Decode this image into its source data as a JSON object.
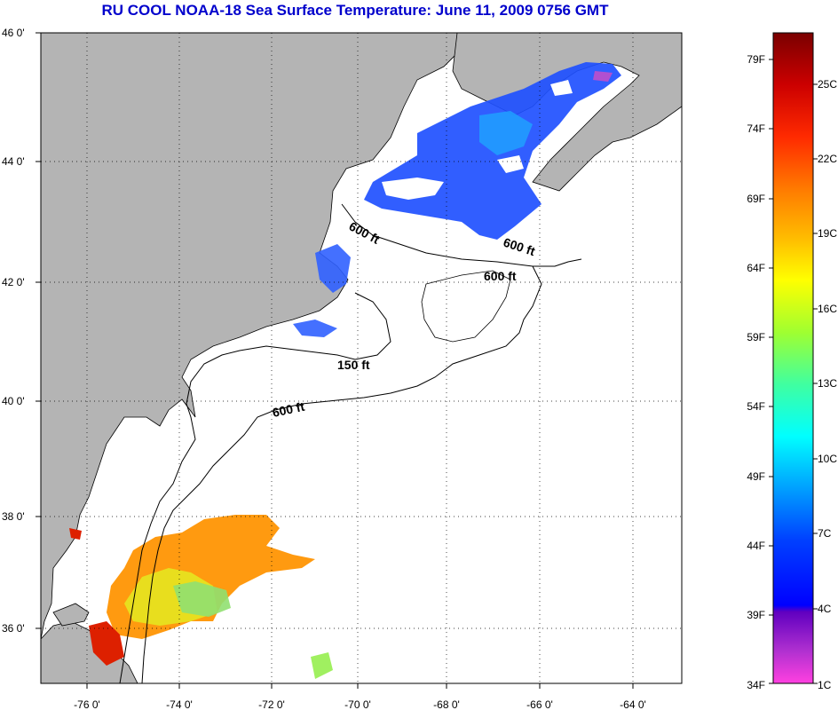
{
  "title": "RU COOL  NOAA-18  Sea Surface Temperature:  June 11, 2009 0756 GMT",
  "map": {
    "lon_labels": [
      "-76 0'",
      "-74 0'",
      "-72 0'",
      "-70 0'",
      "-68 0'",
      "-66 0'",
      "-64 0'"
    ],
    "lat_labels": [
      "46 0'",
      "44 0'",
      "42 0'",
      "40 0'",
      "38 0'",
      "36 0'"
    ],
    "contour_labels": [
      "600 ft",
      "600 ft",
      "600 ft",
      "150 ft",
      "600 ft"
    ],
    "land_color": "#b4b4b4",
    "ocean_color": "#ffffff"
  },
  "colorbar": {
    "fahrenheit_labels": [
      "79F",
      "74F",
      "69F",
      "64F",
      "59F",
      "54F",
      "49F",
      "44F",
      "39F",
      "34F"
    ],
    "celsius_labels": [
      "25C",
      "22C",
      "19C",
      "16C",
      "13C",
      "10C",
      "7C",
      "4C",
      "1C"
    ]
  }
}
